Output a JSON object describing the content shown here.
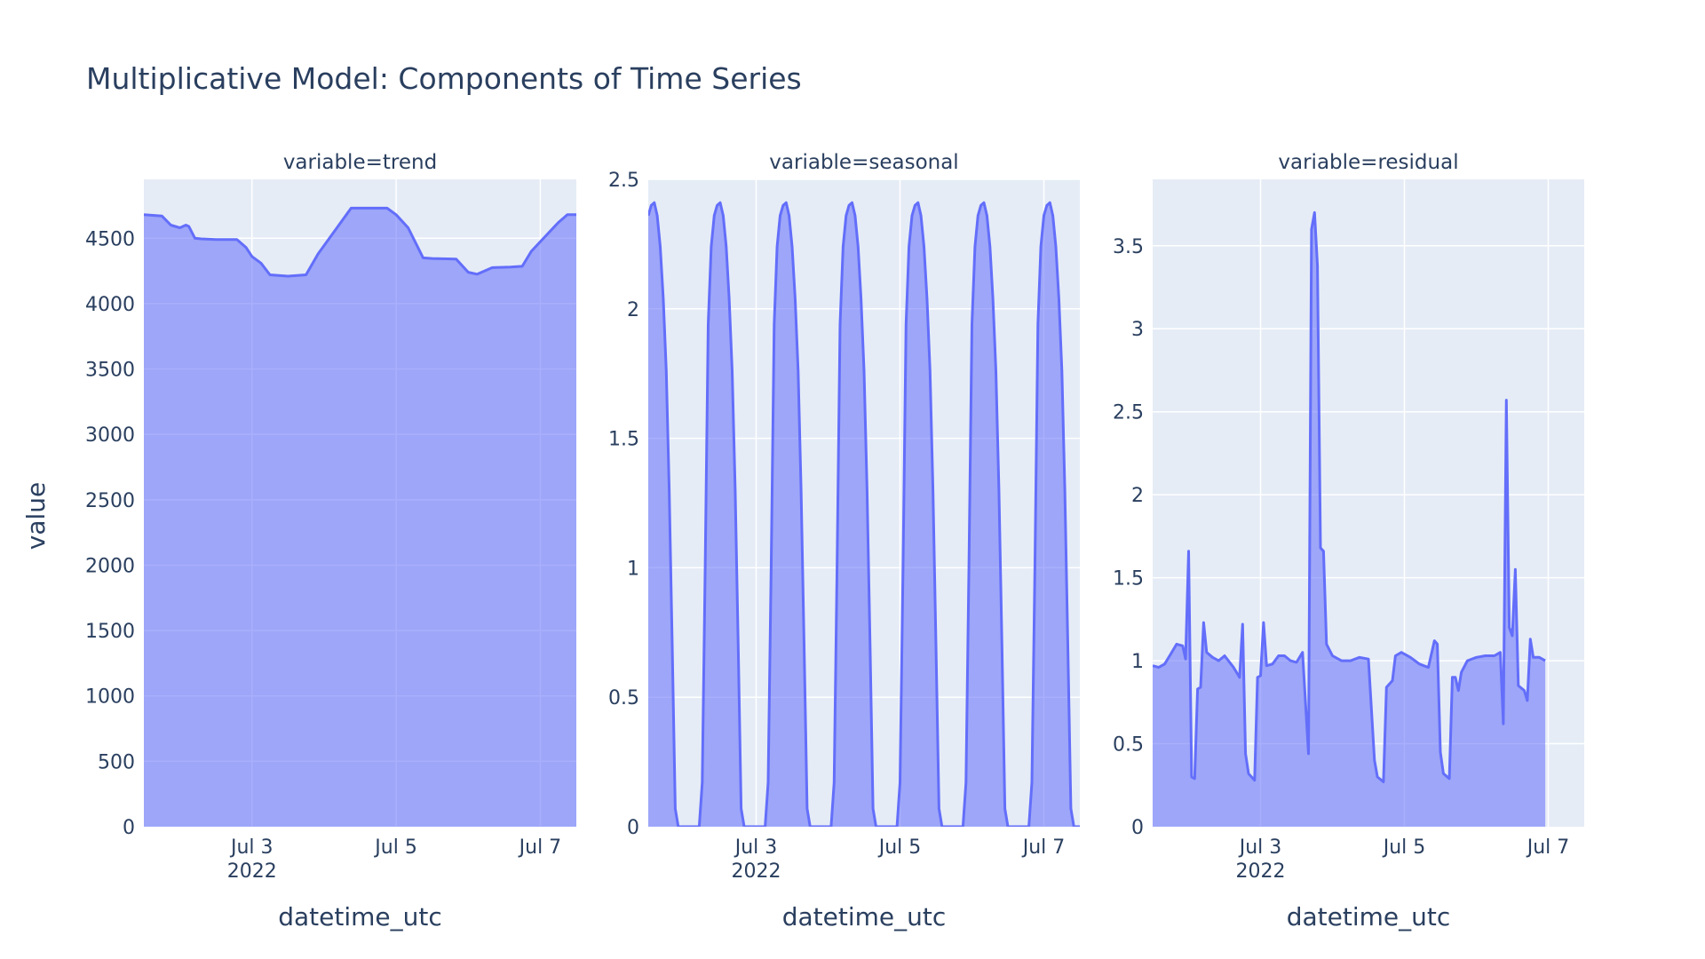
{
  "chart_data": {
    "type": "area",
    "title": "Multiplicative Model: Components of Time Series",
    "ylabel": "value",
    "xlabel": "datetime_utc",
    "x_ticks": [
      {
        "date": "2022-07-03",
        "label": "Jul 3",
        "sublabel": "2022"
      },
      {
        "date": "2022-07-05",
        "label": "Jul 5",
        "sublabel": ""
      },
      {
        "date": "2022-07-07",
        "label": "Jul 7",
        "sublabel": ""
      }
    ],
    "xlim": [
      "2022-07-01 12:00",
      "2022-07-07 12:00"
    ],
    "colors": {
      "line": "#636efa",
      "fill": "rgba(99,110,250,0.55)",
      "plot_bg": "#e5ecf6",
      "grid": "#ffffff"
    },
    "panels": [
      {
        "title": "variable=trend",
        "ylim": [
          0,
          4950
        ],
        "yticks": [
          0,
          500,
          1000,
          1500,
          2000,
          2500,
          3000,
          3500,
          4000,
          4500
        ],
        "tick_labels": [
          "0",
          "500",
          "1000",
          "1500",
          "2000",
          "2500",
          "3000",
          "3500",
          "4000",
          "4500"
        ],
        "points": [
          [
            "2022-07-01 12:00",
            4680
          ],
          [
            "2022-07-01 15:00",
            4675
          ],
          [
            "2022-07-01 18:00",
            4670
          ],
          [
            "2022-07-01 21:00",
            4600
          ],
          [
            "2022-07-02 00:00",
            4580
          ],
          [
            "2022-07-02 02:00",
            4600
          ],
          [
            "2022-07-02 03:00",
            4590
          ],
          [
            "2022-07-02 05:00",
            4500
          ],
          [
            "2022-07-02 07:00",
            4495
          ],
          [
            "2022-07-02 12:00",
            4490
          ],
          [
            "2022-07-02 19:00",
            4490
          ],
          [
            "2022-07-02 22:00",
            4430
          ],
          [
            "2022-07-03 00:00",
            4360
          ],
          [
            "2022-07-03 03:00",
            4310
          ],
          [
            "2022-07-03 06:00",
            4220
          ],
          [
            "2022-07-03 12:00",
            4210
          ],
          [
            "2022-07-03 18:00",
            4220
          ],
          [
            "2022-07-03 22:00",
            4380
          ],
          [
            "2022-07-04 09:00",
            4730
          ],
          [
            "2022-07-04 17:00",
            4730
          ],
          [
            "2022-07-04 21:00",
            4730
          ],
          [
            "2022-07-05 00:00",
            4680
          ],
          [
            "2022-07-05 04:00",
            4580
          ],
          [
            "2022-07-05 09:00",
            4350
          ],
          [
            "2022-07-05 12:00",
            4345
          ],
          [
            "2022-07-05 20:00",
            4340
          ],
          [
            "2022-07-06 00:00",
            4240
          ],
          [
            "2022-07-06 03:00",
            4225
          ],
          [
            "2022-07-06 08:00",
            4275
          ],
          [
            "2022-07-06 14:00",
            4280
          ],
          [
            "2022-07-06 18:00",
            4285
          ],
          [
            "2022-07-06 21:00",
            4400
          ],
          [
            "2022-07-07 06:00",
            4620
          ],
          [
            "2022-07-07 09:00",
            4680
          ],
          [
            "2022-07-07 12:00",
            4680
          ]
        ]
      },
      {
        "title": "variable=seasonal",
        "ylim": [
          0,
          2.5
        ],
        "yticks": [
          0,
          0.5,
          1,
          1.5,
          2,
          2.5
        ],
        "tick_labels": [
          "0",
          "0.5",
          "1",
          "1.5",
          "2",
          "2.5"
        ],
        "points": [
          [
            "2022-07-01 12:00",
            2.36
          ],
          [
            "2022-07-01 13:00",
            2.4
          ],
          [
            "2022-07-01 14:00",
            2.41
          ],
          [
            "2022-07-01 15:00",
            2.36
          ],
          [
            "2022-07-01 16:00",
            2.24
          ],
          [
            "2022-07-01 17:00",
            2.04
          ],
          [
            "2022-07-01 18:00",
            1.76
          ],
          [
            "2022-07-01 19:00",
            1.3
          ],
          [
            "2022-07-01 20:00",
            0.7
          ],
          [
            "2022-07-01 21:00",
            0.07
          ],
          [
            "2022-07-01 22:00",
            0.0
          ],
          [
            "2022-07-02 05:00",
            0.0
          ],
          [
            "2022-07-02 06:00",
            0.17
          ],
          [
            "2022-07-02 07:00",
            1.0
          ],
          [
            "2022-07-02 08:00",
            1.94
          ],
          [
            "2022-07-02 09:00",
            2.24
          ],
          [
            "2022-07-02 10:00",
            2.36
          ],
          [
            "2022-07-02 11:00",
            2.4
          ],
          [
            "2022-07-02 12:00",
            2.41
          ],
          [
            "2022-07-02 13:00",
            2.36
          ],
          [
            "2022-07-02 14:00",
            2.24
          ],
          [
            "2022-07-02 15:00",
            2.04
          ],
          [
            "2022-07-02 16:00",
            1.76
          ],
          [
            "2022-07-02 17:00",
            1.3
          ],
          [
            "2022-07-02 18:00",
            0.7
          ],
          [
            "2022-07-02 19:00",
            0.07
          ],
          [
            "2022-07-02 20:00",
            0.0
          ],
          [
            "2022-07-03 03:00",
            0.0
          ],
          [
            "2022-07-03 04:00",
            0.17
          ],
          [
            "2022-07-03 05:00",
            1.0
          ],
          [
            "2022-07-03 06:00",
            1.94
          ],
          [
            "2022-07-03 07:00",
            2.24
          ],
          [
            "2022-07-03 08:00",
            2.36
          ],
          [
            "2022-07-03 09:00",
            2.4
          ],
          [
            "2022-07-03 10:00",
            2.41
          ],
          [
            "2022-07-03 11:00",
            2.36
          ],
          [
            "2022-07-03 12:00",
            2.24
          ],
          [
            "2022-07-03 13:00",
            2.04
          ],
          [
            "2022-07-03 14:00",
            1.76
          ],
          [
            "2022-07-03 15:00",
            1.3
          ],
          [
            "2022-07-03 16:00",
            0.7
          ],
          [
            "2022-07-03 17:00",
            0.07
          ],
          [
            "2022-07-03 18:00",
            0.0
          ],
          [
            "2022-07-04 01:00",
            0.0
          ],
          [
            "2022-07-04 02:00",
            0.17
          ],
          [
            "2022-07-04 03:00",
            1.0
          ],
          [
            "2022-07-04 04:00",
            1.94
          ],
          [
            "2022-07-04 05:00",
            2.24
          ],
          [
            "2022-07-04 06:00",
            2.36
          ],
          [
            "2022-07-04 07:00",
            2.4
          ],
          [
            "2022-07-04 08:00",
            2.41
          ],
          [
            "2022-07-04 09:00",
            2.36
          ],
          [
            "2022-07-04 10:00",
            2.24
          ],
          [
            "2022-07-04 11:00",
            2.04
          ],
          [
            "2022-07-04 12:00",
            1.76
          ],
          [
            "2022-07-04 13:00",
            1.3
          ],
          [
            "2022-07-04 14:00",
            0.7
          ],
          [
            "2022-07-04 15:00",
            0.07
          ],
          [
            "2022-07-04 16:00",
            0.0
          ],
          [
            "2022-07-04 23:00",
            0.0
          ],
          [
            "2022-07-05 00:00",
            0.17
          ],
          [
            "2022-07-05 01:00",
            1.0
          ],
          [
            "2022-07-05 02:00",
            1.94
          ],
          [
            "2022-07-05 03:00",
            2.24
          ],
          [
            "2022-07-05 04:00",
            2.36
          ],
          [
            "2022-07-05 05:00",
            2.4
          ],
          [
            "2022-07-05 06:00",
            2.41
          ],
          [
            "2022-07-05 07:00",
            2.36
          ],
          [
            "2022-07-05 08:00",
            2.24
          ],
          [
            "2022-07-05 09:00",
            2.04
          ],
          [
            "2022-07-05 10:00",
            1.76
          ],
          [
            "2022-07-05 11:00",
            1.3
          ],
          [
            "2022-07-05 12:00",
            0.7
          ],
          [
            "2022-07-05 13:00",
            0.07
          ],
          [
            "2022-07-05 14:00",
            0.0
          ],
          [
            "2022-07-05 21:00",
            0.0
          ],
          [
            "2022-07-05 22:00",
            0.17
          ],
          [
            "2022-07-05 23:00",
            1.0
          ],
          [
            "2022-07-06 00:00",
            1.94
          ],
          [
            "2022-07-06 01:00",
            2.24
          ],
          [
            "2022-07-06 02:00",
            2.36
          ],
          [
            "2022-07-06 03:00",
            2.4
          ],
          [
            "2022-07-06 04:00",
            2.41
          ],
          [
            "2022-07-06 05:00",
            2.36
          ],
          [
            "2022-07-06 06:00",
            2.24
          ],
          [
            "2022-07-06 07:00",
            2.04
          ],
          [
            "2022-07-06 08:00",
            1.76
          ],
          [
            "2022-07-06 09:00",
            1.3
          ],
          [
            "2022-07-06 10:00",
            0.7
          ],
          [
            "2022-07-06 11:00",
            0.07
          ],
          [
            "2022-07-06 12:00",
            0.0
          ],
          [
            "2022-07-06 19:00",
            0.0
          ],
          [
            "2022-07-06 20:00",
            0.17
          ],
          [
            "2022-07-06 21:00",
            1.0
          ],
          [
            "2022-07-06 22:00",
            1.94
          ],
          [
            "2022-07-06 23:00",
            2.24
          ],
          [
            "2022-07-07 00:00",
            2.36
          ],
          [
            "2022-07-07 01:00",
            2.4
          ],
          [
            "2022-07-07 02:00",
            2.41
          ],
          [
            "2022-07-07 03:00",
            2.36
          ],
          [
            "2022-07-07 04:00",
            2.24
          ],
          [
            "2022-07-07 05:00",
            2.04
          ],
          [
            "2022-07-07 06:00",
            1.76
          ],
          [
            "2022-07-07 07:00",
            1.3
          ],
          [
            "2022-07-07 08:00",
            0.7
          ],
          [
            "2022-07-07 09:00",
            0.07
          ],
          [
            "2022-07-07 10:00",
            0.0
          ],
          [
            "2022-07-07 12:00",
            0.0
          ]
        ]
      },
      {
        "title": "variable=residual",
        "ylim": [
          0,
          3.9
        ],
        "yticks": [
          0,
          0.5,
          1,
          1.5,
          2,
          2.5,
          3,
          3.5
        ],
        "tick_labels": [
          "0",
          "0.5",
          "1",
          "1.5",
          "2",
          "2.5",
          "3",
          "3.5"
        ],
        "points": [
          [
            "2022-07-01 12:00",
            0.97
          ],
          [
            "2022-07-01 14:00",
            0.96
          ],
          [
            "2022-07-01 16:00",
            0.98
          ],
          [
            "2022-07-01 18:00",
            1.04
          ],
          [
            "2022-07-01 20:00",
            1.1
          ],
          [
            "2022-07-01 22:00",
            1.09
          ],
          [
            "2022-07-01 23:00",
            1.01
          ],
          [
            "2022-07-02 00:00",
            1.66
          ],
          [
            "2022-07-02 01:00",
            0.3
          ],
          [
            "2022-07-02 02:00",
            0.29
          ],
          [
            "2022-07-02 03:00",
            0.83
          ],
          [
            "2022-07-02 04:00",
            0.84
          ],
          [
            "2022-07-02 05:00",
            1.23
          ],
          [
            "2022-07-02 06:00",
            1.05
          ],
          [
            "2022-07-02 08:00",
            1.02
          ],
          [
            "2022-07-02 10:00",
            1.0
          ],
          [
            "2022-07-02 12:00",
            1.03
          ],
          [
            "2022-07-02 15:00",
            0.96
          ],
          [
            "2022-07-02 17:00",
            0.9
          ],
          [
            "2022-07-02 18:00",
            1.22
          ],
          [
            "2022-07-02 19:00",
            0.44
          ],
          [
            "2022-07-02 20:00",
            0.32
          ],
          [
            "2022-07-02 22:00",
            0.28
          ],
          [
            "2022-07-02 23:00",
            0.9
          ],
          [
            "2022-07-03 00:00",
            0.91
          ],
          [
            "2022-07-03 01:00",
            1.23
          ],
          [
            "2022-07-03 02:00",
            0.97
          ],
          [
            "2022-07-03 04:00",
            0.98
          ],
          [
            "2022-07-03 06:00",
            1.03
          ],
          [
            "2022-07-03 08:00",
            1.03
          ],
          [
            "2022-07-03 10:00",
            1.0
          ],
          [
            "2022-07-03 12:00",
            0.99
          ],
          [
            "2022-07-03 14:00",
            1.05
          ],
          [
            "2022-07-03 16:00",
            0.44
          ],
          [
            "2022-07-03 17:00",
            3.6
          ],
          [
            "2022-07-03 18:00",
            3.7
          ],
          [
            "2022-07-03 19:00",
            3.38
          ],
          [
            "2022-07-03 20:00",
            1.68
          ],
          [
            "2022-07-03 21:00",
            1.66
          ],
          [
            "2022-07-03 22:00",
            1.1
          ],
          [
            "2022-07-04 00:00",
            1.03
          ],
          [
            "2022-07-04 03:00",
            1.0
          ],
          [
            "2022-07-04 06:00",
            1.0
          ],
          [
            "2022-07-04 09:00",
            1.02
          ],
          [
            "2022-07-04 12:00",
            1.01
          ],
          [
            "2022-07-04 14:00",
            0.4
          ],
          [
            "2022-07-04 15:00",
            0.3
          ],
          [
            "2022-07-04 17:00",
            0.27
          ],
          [
            "2022-07-04 18:00",
            0.84
          ],
          [
            "2022-07-04 20:00",
            0.88
          ],
          [
            "2022-07-04 21:00",
            1.03
          ],
          [
            "2022-07-04 23:00",
            1.05
          ],
          [
            "2022-07-05 02:00",
            1.02
          ],
          [
            "2022-07-05 05:00",
            0.98
          ],
          [
            "2022-07-05 08:00",
            0.96
          ],
          [
            "2022-07-05 10:00",
            1.12
          ],
          [
            "2022-07-05 11:00",
            1.1
          ],
          [
            "2022-07-05 12:00",
            0.45
          ],
          [
            "2022-07-05 13:00",
            0.32
          ],
          [
            "2022-07-05 15:00",
            0.29
          ],
          [
            "2022-07-05 16:00",
            0.9
          ],
          [
            "2022-07-05 17:00",
            0.9
          ],
          [
            "2022-07-05 18:00",
            0.82
          ],
          [
            "2022-07-05 19:00",
            0.93
          ],
          [
            "2022-07-05 21:00",
            1.0
          ],
          [
            "2022-07-06 00:00",
            1.02
          ],
          [
            "2022-07-06 03:00",
            1.03
          ],
          [
            "2022-07-06 06:00",
            1.03
          ],
          [
            "2022-07-06 08:00",
            1.05
          ],
          [
            "2022-07-06 09:00",
            0.62
          ],
          [
            "2022-07-06 10:00",
            2.57
          ],
          [
            "2022-07-06 11:00",
            1.2
          ],
          [
            "2022-07-06 12:00",
            1.15
          ],
          [
            "2022-07-06 13:00",
            1.55
          ],
          [
            "2022-07-06 14:00",
            0.85
          ],
          [
            "2022-07-06 16:00",
            0.82
          ],
          [
            "2022-07-06 17:00",
            0.76
          ],
          [
            "2022-07-06 18:00",
            1.13
          ],
          [
            "2022-07-06 19:00",
            1.02
          ],
          [
            "2022-07-06 21:00",
            1.02
          ],
          [
            "2022-07-06 23:00",
            1.0
          ]
        ]
      }
    ]
  }
}
